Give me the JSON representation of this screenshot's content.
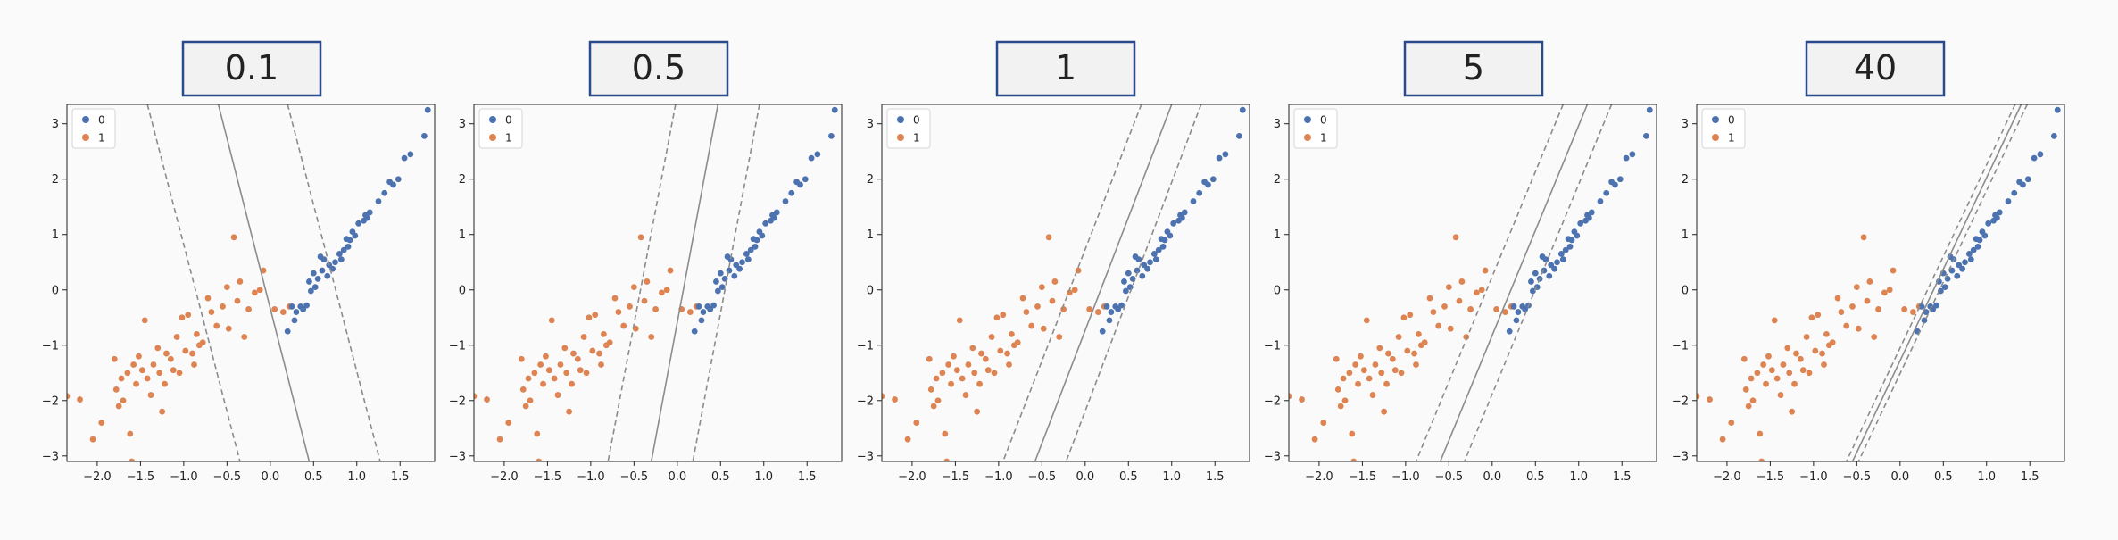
{
  "colors": {
    "class_0": "#4c72b0",
    "class_1": "#dd8452",
    "decision_line": "#8c8c8c",
    "margin_line": "#8c8c8c",
    "label_box_border": "#2b4a8c",
    "label_box_fill": "#f2f2f2",
    "background": "#fafafa"
  },
  "legend": {
    "placement": "upper-left",
    "entries": [
      "0",
      "1"
    ]
  },
  "axes": {
    "xlim": [
      -2.35,
      1.9
    ],
    "ylim": [
      -3.1,
      3.35
    ],
    "xticks": [
      -2.0,
      -1.5,
      -1.0,
      -0.5,
      0.0,
      0.5,
      1.0,
      1.5
    ],
    "xtick_labels": [
      "−2.0",
      "−1.5",
      "−1.0",
      "−0.5",
      "0.0",
      "0.5",
      "1.0",
      "1.5"
    ],
    "yticks": [
      3,
      2,
      1,
      0,
      -1,
      -2,
      -3
    ],
    "ytick_labels": [
      "3",
      "2",
      "1",
      "0",
      "−1",
      "−2",
      "−3"
    ]
  },
  "panel_labels": [
    "0.1",
    "0.5",
    "1",
    "5",
    "40"
  ],
  "chart_data": [
    {
      "type": "scatter",
      "label": "0.1",
      "decision": [
        [
          -0.6,
          3.35
        ],
        [
          0.45,
          -3.1
        ]
      ],
      "margin_upper": [
        [
          -1.42,
          3.35
        ],
        [
          -0.35,
          -3.1
        ]
      ],
      "margin_lower": [
        [
          0.2,
          3.35
        ],
        [
          1.27,
          -3.1
        ]
      ]
    },
    {
      "type": "scatter",
      "label": "0.5",
      "decision": [
        [
          0.47,
          3.35
        ],
        [
          -0.3,
          -3.1
        ]
      ],
      "margin_upper": [
        [
          -0.02,
          3.35
        ],
        [
          -0.8,
          -3.1
        ]
      ],
      "margin_lower": [
        [
          0.95,
          3.35
        ],
        [
          0.18,
          -3.1
        ]
      ]
    },
    {
      "type": "scatter",
      "label": "1",
      "decision": [
        [
          1.0,
          3.35
        ],
        [
          -0.58,
          -3.1
        ]
      ],
      "margin_upper": [
        [
          0.65,
          3.35
        ],
        [
          -0.95,
          -3.1
        ]
      ],
      "margin_lower": [
        [
          1.34,
          3.35
        ],
        [
          -0.22,
          -3.1
        ]
      ]
    },
    {
      "type": "scatter",
      "label": "5",
      "decision": [
        [
          1.1,
          3.35
        ],
        [
          -0.6,
          -3.1
        ]
      ],
      "margin_upper": [
        [
          0.82,
          3.35
        ],
        [
          -0.88,
          -3.1
        ]
      ],
      "margin_lower": [
        [
          1.38,
          3.35
        ],
        [
          -0.32,
          -3.1
        ]
      ]
    },
    {
      "type": "scatter",
      "label": "40",
      "decision": [
        [
          1.4,
          3.35
        ],
        [
          -0.55,
          -3.1
        ]
      ],
      "margin_upper": [
        [
          1.33,
          3.35
        ],
        [
          -0.62,
          -3.1
        ]
      ],
      "margin_lower": [
        [
          1.47,
          3.35
        ],
        [
          -0.48,
          -3.1
        ]
      ]
    }
  ],
  "points_class0": [
    [
      1.82,
      3.25
    ],
    [
      1.78,
      2.78
    ],
    [
      1.62,
      2.45
    ],
    [
      1.55,
      2.38
    ],
    [
      1.48,
      2.0
    ],
    [
      1.42,
      1.9
    ],
    [
      1.38,
      1.95
    ],
    [
      1.32,
      1.75
    ],
    [
      1.25,
      1.6
    ],
    [
      1.15,
      1.4
    ],
    [
      1.12,
      1.3
    ],
    [
      1.1,
      1.35
    ],
    [
      1.08,
      1.25
    ],
    [
      1.02,
      1.2
    ],
    [
      0.98,
      0.98
    ],
    [
      0.95,
      1.05
    ],
    [
      0.92,
      0.9
    ],
    [
      0.9,
      0.78
    ],
    [
      0.88,
      0.92
    ],
    [
      0.85,
      0.72
    ],
    [
      0.82,
      0.55
    ],
    [
      0.8,
      0.65
    ],
    [
      0.75,
      0.5
    ],
    [
      0.72,
      0.38
    ],
    [
      0.68,
      0.45
    ],
    [
      0.66,
      0.25
    ],
    [
      0.62,
      0.55
    ],
    [
      0.6,
      0.35
    ],
    [
      0.58,
      0.6
    ],
    [
      0.55,
      0.2
    ],
    [
      0.52,
      0.05
    ],
    [
      0.5,
      0.3
    ],
    [
      0.47,
      -0.02
    ],
    [
      0.45,
      0.15
    ],
    [
      0.42,
      -0.28
    ],
    [
      0.38,
      -0.35
    ],
    [
      0.35,
      -0.3
    ],
    [
      0.3,
      -0.4
    ],
    [
      0.25,
      -0.3
    ],
    [
      0.28,
      -0.55
    ],
    [
      0.2,
      -0.75
    ]
  ],
  "points_class1": [
    [
      -2.35,
      -1.92
    ],
    [
      -2.2,
      -1.98
    ],
    [
      -2.05,
      -2.7
    ],
    [
      -1.95,
      -2.4
    ],
    [
      -1.8,
      -1.25
    ],
    [
      -1.78,
      -1.8
    ],
    [
      -1.75,
      -2.1
    ],
    [
      -1.72,
      -1.6
    ],
    [
      -1.7,
      -2.0
    ],
    [
      -1.65,
      -1.5
    ],
    [
      -1.62,
      -2.6
    ],
    [
      -1.6,
      -3.1
    ],
    [
      -1.58,
      -1.35
    ],
    [
      -1.55,
      -1.7
    ],
    [
      -1.52,
      -1.2
    ],
    [
      -1.48,
      -1.45
    ],
    [
      -1.45,
      -0.55
    ],
    [
      -1.42,
      -1.6
    ],
    [
      -1.38,
      -1.9
    ],
    [
      -1.35,
      -1.35
    ],
    [
      -1.3,
      -1.05
    ],
    [
      -1.28,
      -1.5
    ],
    [
      -1.25,
      -2.2
    ],
    [
      -1.22,
      -1.7
    ],
    [
      -1.2,
      -1.15
    ],
    [
      -1.15,
      -1.25
    ],
    [
      -1.12,
      -1.45
    ],
    [
      -1.08,
      -0.85
    ],
    [
      -1.05,
      -1.5
    ],
    [
      -1.02,
      -0.5
    ],
    [
      -0.98,
      -1.1
    ],
    [
      -0.95,
      -0.45
    ],
    [
      -0.9,
      -1.15
    ],
    [
      -0.88,
      -1.35
    ],
    [
      -0.85,
      -0.8
    ],
    [
      -0.82,
      -1.0
    ],
    [
      -0.78,
      -0.95
    ],
    [
      -0.72,
      -0.15
    ],
    [
      -0.68,
      -0.4
    ],
    [
      -0.62,
      -0.65
    ],
    [
      -0.55,
      -0.3
    ],
    [
      -0.5,
      0.05
    ],
    [
      -0.48,
      -0.7
    ],
    [
      -0.42,
      0.95
    ],
    [
      -0.38,
      -0.2
    ],
    [
      -0.35,
      0.15
    ],
    [
      -0.3,
      -0.85
    ],
    [
      -0.25,
      -0.35
    ],
    [
      -0.18,
      -0.05
    ],
    [
      -0.12,
      0.0
    ],
    [
      -0.08,
      0.35
    ],
    [
      0.05,
      -0.35
    ],
    [
      0.15,
      -0.4
    ],
    [
      0.22,
      -0.3
    ]
  ]
}
